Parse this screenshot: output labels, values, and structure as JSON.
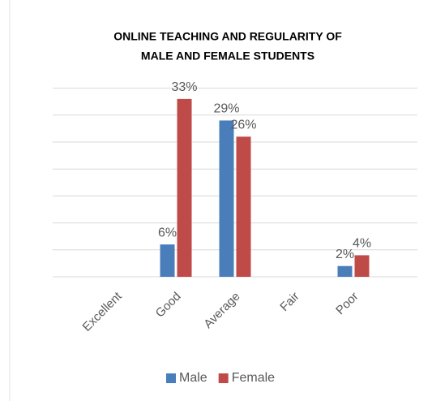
{
  "chart_data": {
    "type": "bar",
    "title_lines": [
      "ONLINE TEACHING AND REGULARITY OF",
      "MALE AND FEMALE STUDENTS"
    ],
    "categories": [
      "Excellent",
      "Good",
      "Average",
      "Fair",
      "Poor"
    ],
    "series": [
      {
        "name": "Male",
        "color": "#4a7ebb",
        "values": [
          null,
          6,
          29,
          null,
          2
        ],
        "value_labels": [
          null,
          "6%",
          "29%",
          null,
          "2%"
        ]
      },
      {
        "name": "Female",
        "color": "#be4b48",
        "values": [
          null,
          33,
          26,
          null,
          4
        ],
        "value_labels": [
          null,
          "33%",
          "26%",
          null,
          "4%"
        ]
      }
    ],
    "ylim": [
      0,
      35
    ],
    "yticks": [
      0,
      5,
      10,
      15,
      20,
      25,
      30,
      35
    ],
    "grid": true,
    "legend": "bottom"
  }
}
